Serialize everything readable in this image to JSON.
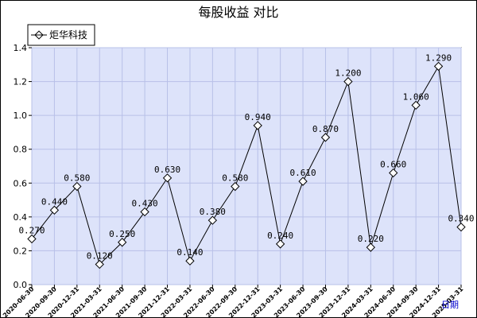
{
  "chart_data": {
    "type": "line",
    "title": "每股收益  对比",
    "xlabel": "日期",
    "ylabel": "",
    "ylim": [
      0,
      1.4
    ],
    "yticks": [
      "0.0",
      "0.2",
      "0.4",
      "0.6",
      "0.8",
      "1.0",
      "1.2",
      "1.4"
    ],
    "grid": true,
    "legend": "top-left",
    "colors": {
      "plot_bg": "#dde3fa",
      "grid": "#b8c0e8",
      "line": "#000000"
    },
    "categories": [
      "2020-06-30",
      "2020-09-30",
      "2020-12-31",
      "2021-03-31",
      "2021-06-30",
      "2021-09-30",
      "2021-12-31",
      "2022-03-31",
      "2022-06-30",
      "2022-09-30",
      "2022-12-31",
      "2023-03-31",
      "2023-06-30",
      "2023-09-30",
      "2023-12-31",
      "2024-03-31",
      "2024-06-30",
      "2024-09-30",
      "2024-12-31",
      "2025-03-31"
    ],
    "series": [
      {
        "name": "炬华科技",
        "values": [
          0.27,
          0.44,
          0.58,
          0.12,
          0.25,
          0.43,
          0.63,
          0.14,
          0.38,
          0.58,
          0.94,
          0.24,
          0.61,
          0.87,
          1.2,
          0.22,
          0.66,
          1.06,
          1.29,
          0.34
        ],
        "labels": [
          "0.270",
          "0.440",
          "0.580",
          "0.120",
          "0.250",
          "0.430",
          "0.630",
          "0.140",
          "0.380",
          "0.580",
          "0.940",
          "0.240",
          "0.610",
          "0.870",
          "1.200",
          "0.220",
          "0.660",
          "1.060",
          "1.290",
          "0.340"
        ]
      }
    ]
  }
}
